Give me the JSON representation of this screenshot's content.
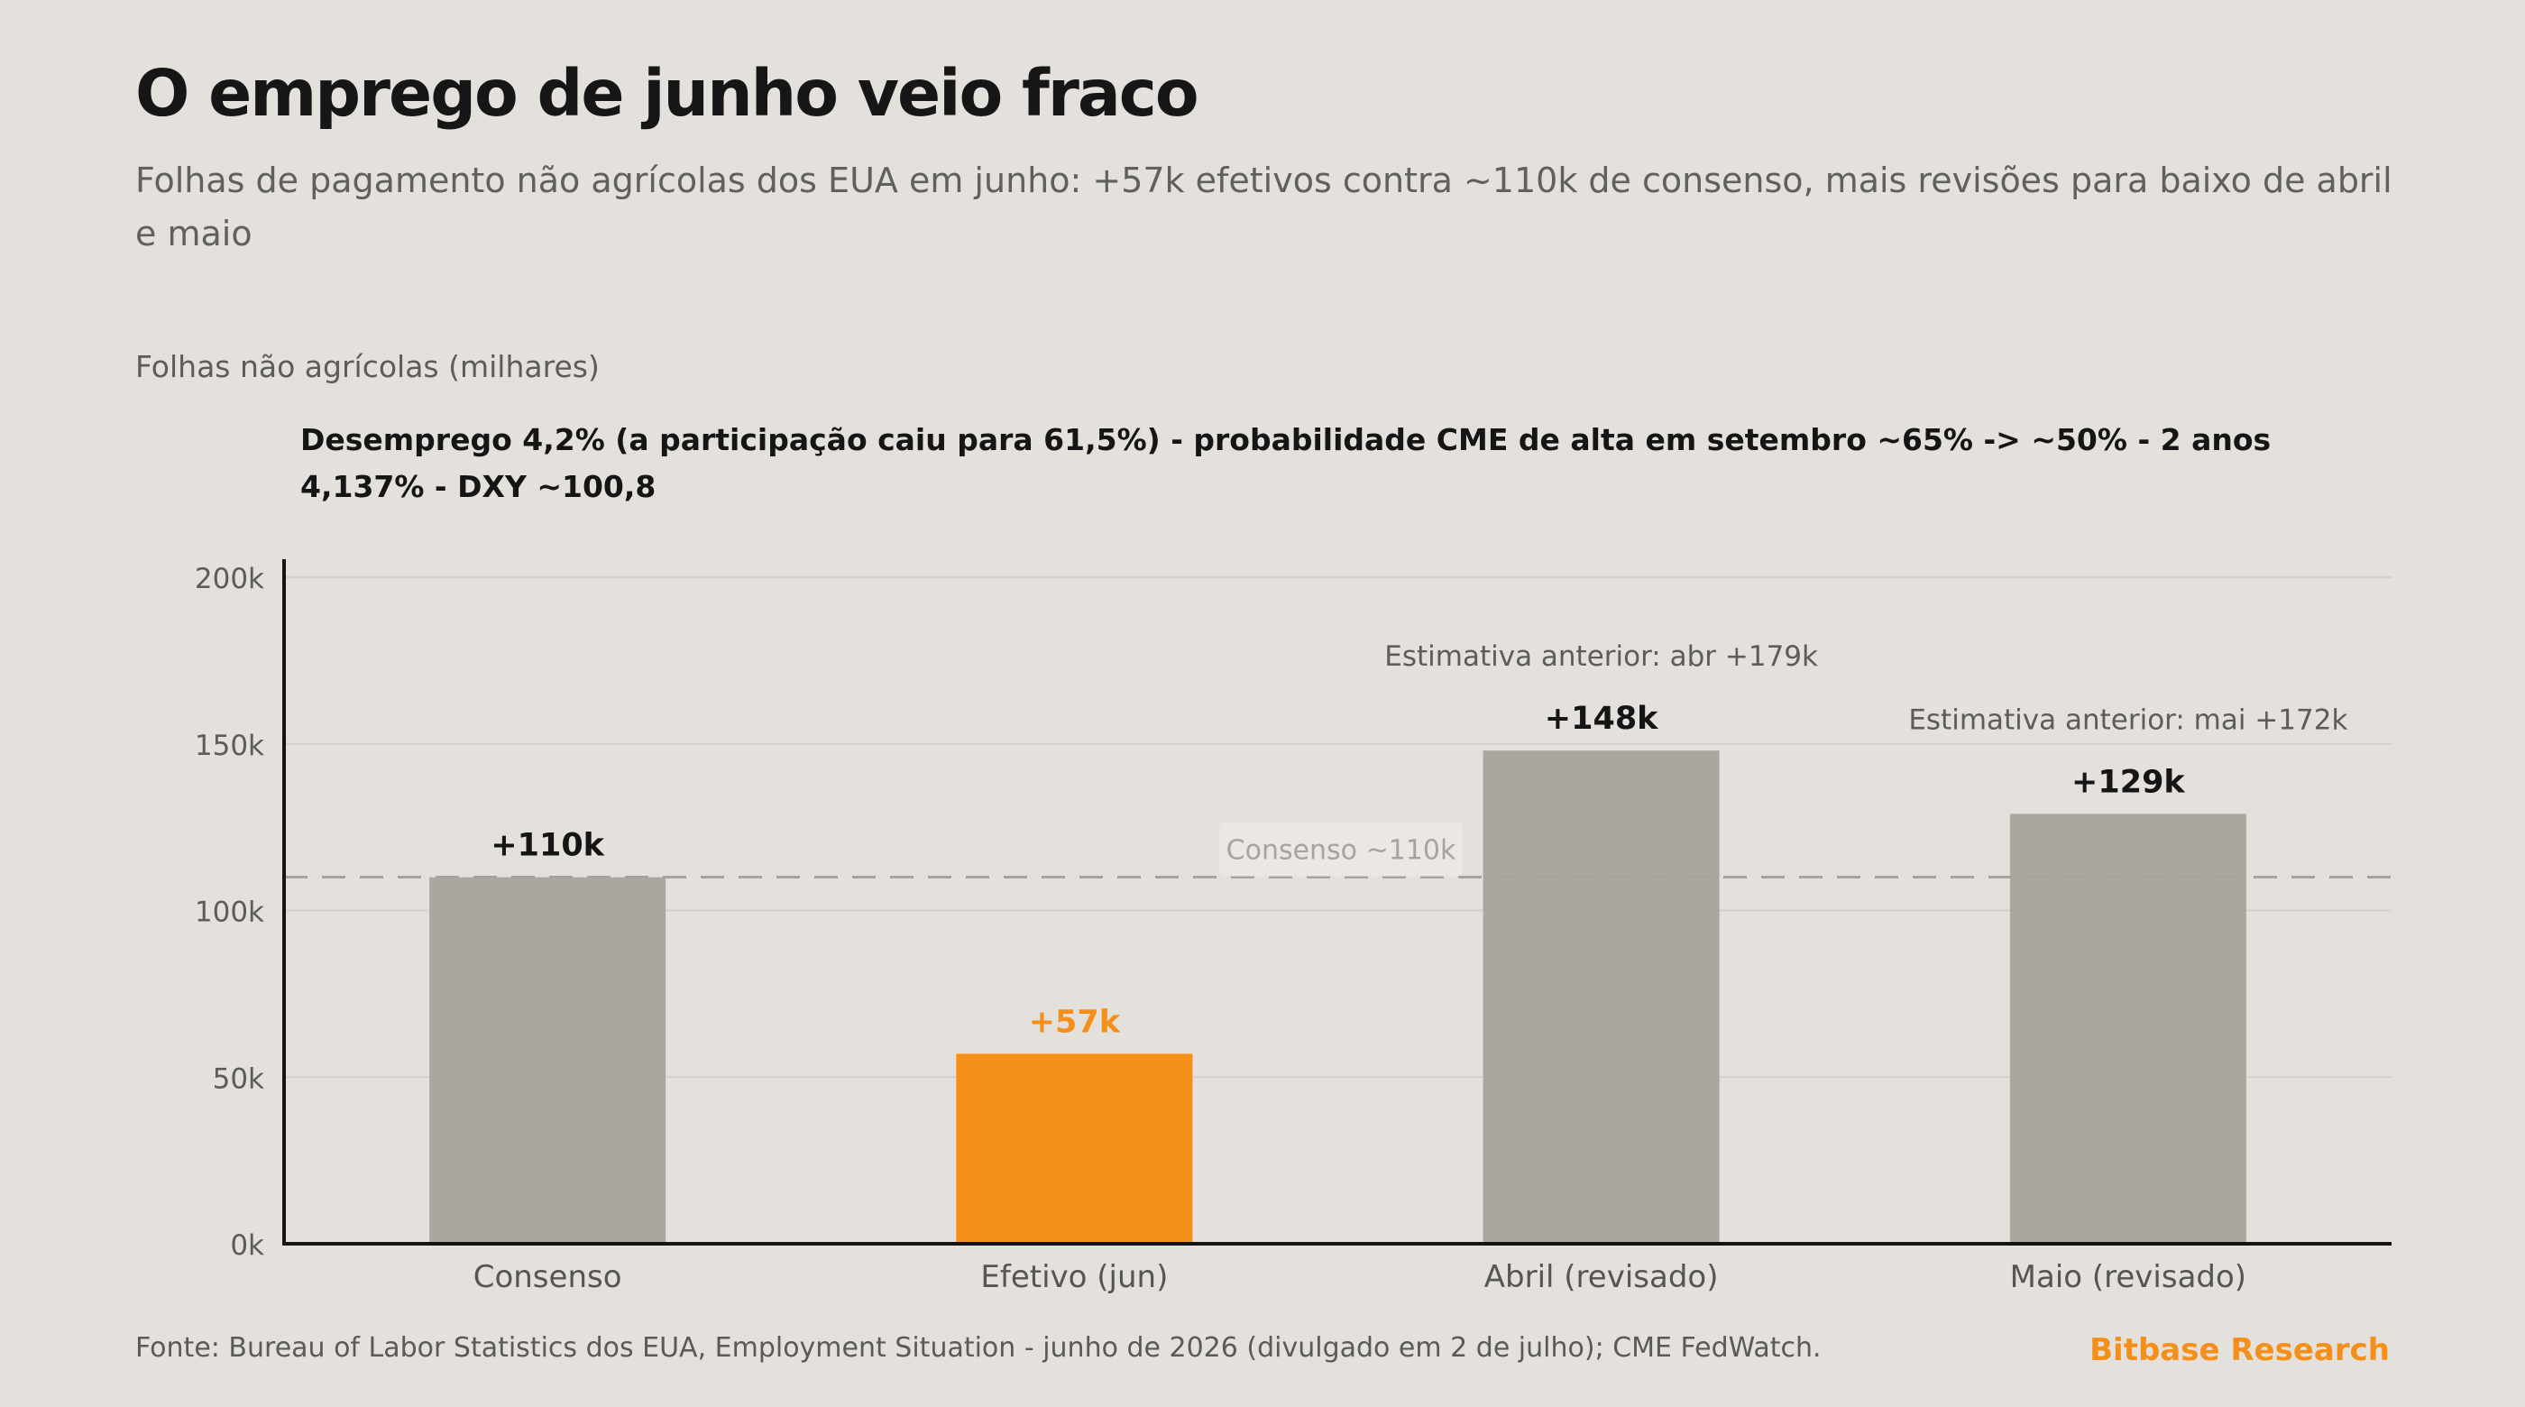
{
  "title": "O emprego de junho veio fraco",
  "subtitle": "Folhas de pagamento não agrícolas dos EUA em junho: +57k efetivos contra ~110k de consenso, mais revisões para baixo de abril e maio",
  "source": "Fonte: Bureau of Labor Statistics dos EUA, Employment Situation - junho de 2026 (divulgado em 2 de julho); CME FedWatch.",
  "brand": "Bitbase Research",
  "colors": {
    "background": "#e4e0db",
    "bar_default": "#aba69f",
    "bar_highlight": "#f48f1a",
    "brand": "#f48f1a",
    "gridline": "#d3cfca",
    "consensus_line": "#a6a29d"
  },
  "chart_data": {
    "type": "bar",
    "title": "O emprego de junho veio fraco",
    "ylabel": "Folhas não agrícolas (milhares)",
    "annotation": "Desemprego 4,2% (a participação caiu para 61,5%) - probabilidade CME de alta em setembro ~65% -> ~50% - 2 anos 4,137% - DXY ~100,8",
    "categories": [
      "Consenso",
      "Efetivo (jun)",
      "Abril (revisado)",
      "Maio (revisado)"
    ],
    "values": [
      110,
      57,
      148,
      129
    ],
    "value_labels": [
      "+110k",
      "+57k",
      "+148k",
      "+129k"
    ],
    "highlight_index": 1,
    "prior_estimates": [
      "",
      "",
      "Estimativa anterior: abr +179k",
      "Estimativa anterior: mai +172k"
    ],
    "reference_line": {
      "value": 110,
      "label": "Consenso ~110k"
    },
    "ylim": [
      0,
      200
    ],
    "yticks": [
      0,
      50,
      100,
      150,
      200
    ],
    "ytick_labels": [
      "0k",
      "50k",
      "100k",
      "150k",
      "200k"
    ],
    "grid": true
  }
}
